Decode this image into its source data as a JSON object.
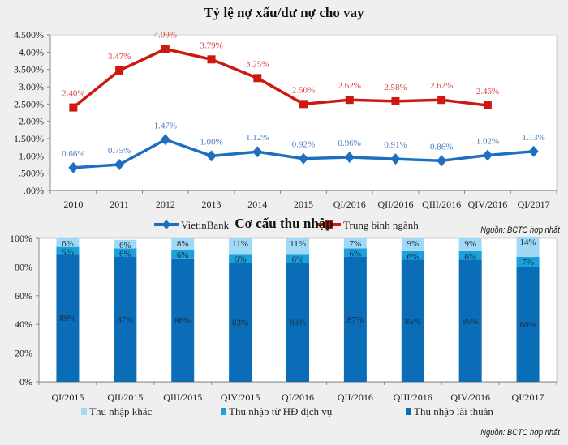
{
  "chart_data": [
    {
      "type": "line",
      "title": "Tỷ lệ nợ xấu/dư nợ cho vay",
      "xlabel": "",
      "ylabel": "",
      "categories": [
        "2010",
        "2011",
        "2012",
        "2013",
        "2014",
        "2015",
        "QI/2016",
        "QII/2016",
        "QIII/2016",
        "QIV/2016",
        "QI/2017"
      ],
      "ylim": [
        0,
        4.5
      ],
      "yticks": [
        {
          "value": 0,
          "label": ".00%"
        },
        {
          "value": 0.5,
          "label": ".500%"
        },
        {
          "value": 1.0,
          "label": "1.00%"
        },
        {
          "value": 1.5,
          "label": "1.500%"
        },
        {
          "value": 2.0,
          "label": "2.00%"
        },
        {
          "value": 2.5,
          "label": "2.500%"
        },
        {
          "value": 3.0,
          "label": "3.00%"
        },
        {
          "value": 3.5,
          "label": "3.500%"
        },
        {
          "value": 4.0,
          "label": "4.00%"
        },
        {
          "value": 4.5,
          "label": "4.500%"
        }
      ],
      "grid": false,
      "legend": "bottom",
      "series": [
        {
          "name": "VietinBank",
          "color": "#1f6fbf",
          "label_color": "#4a7fc1",
          "marker": "diamond",
          "values": [
            0.66,
            0.75,
            1.47,
            1.0,
            1.12,
            0.92,
            0.96,
            0.91,
            0.86,
            1.02,
            1.13
          ],
          "labels": [
            "0.66%",
            "0.75%",
            "1.47%",
            "1.00%",
            "1.12%",
            "0.92%",
            "0.96%",
            "0.91%",
            "0.86%",
            "1.02%",
            "1.13%"
          ]
        },
        {
          "name": "Trung bình ngành",
          "color": "#cc1a12",
          "label_color": "#d9433a",
          "marker": "square",
          "values": [
            2.4,
            3.47,
            4.09,
            3.79,
            3.25,
            2.5,
            2.62,
            2.58,
            2.62,
            2.46,
            null
          ],
          "labels": [
            "2.40%",
            "3.47%",
            "4.09%",
            "3.79%",
            "3.25%",
            "2.50%",
            "2.62%",
            "2.58%",
            "2.62%",
            "2.46%",
            null
          ]
        }
      ],
      "source": "Nguồn: BCTC hợp nhất"
    },
    {
      "type": "bar",
      "stacked": true,
      "title": "Cơ cấu thu nhập",
      "xlabel": "",
      "ylabel": "",
      "categories": [
        "QI/2015",
        "QII/2015",
        "QIII/2015",
        "QIV/2015",
        "QI/2016",
        "QII/2016",
        "QIII/2016",
        "QIV/2016",
        "QI/2017"
      ],
      "ylim": [
        0,
        100
      ],
      "yticks": [
        {
          "value": 0,
          "label": "0%"
        },
        {
          "value": 20,
          "label": "20%"
        },
        {
          "value": 40,
          "label": "40%"
        },
        {
          "value": 60,
          "label": "60%"
        },
        {
          "value": 80,
          "label": "80%"
        },
        {
          "value": 100,
          "label": "100%"
        }
      ],
      "grid": false,
      "legend": "bottom",
      "series": [
        {
          "name": "Thu nhập lãi thuần",
          "color": "#0b6db8",
          "values": [
            89,
            87,
            86,
            83,
            83,
            87,
            85,
            85,
            80
          ]
        },
        {
          "name": "Thu nhập từ HĐ dịch vụ",
          "color": "#1aa0dd",
          "values": [
            5,
            6,
            6,
            6,
            6,
            6,
            6,
            6,
            7
          ]
        },
        {
          "name": "Thu nhập khác",
          "color": "#9fd9f5",
          "values": [
            6,
            6,
            8,
            11,
            11,
            7,
            9,
            9,
            14
          ]
        }
      ],
      "legend_order": [
        "Thu nhập khác",
        "Thu nhập từ HĐ dịch vụ",
        "Thu nhập lãi thuần"
      ],
      "source": "Nguồn: BCTC hợp nhất"
    }
  ]
}
